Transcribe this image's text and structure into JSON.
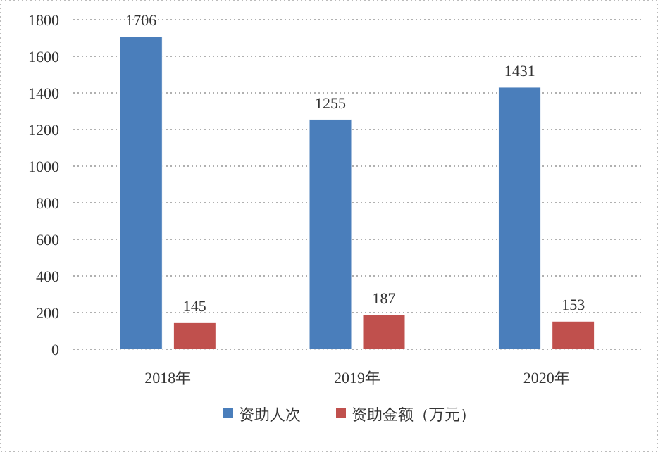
{
  "chart_data": {
    "type": "bar",
    "categories": [
      "2018年",
      "2019年",
      "2020年"
    ],
    "series": [
      {
        "name": "资助人次",
        "color": "#4a7ebb",
        "values": [
          1706,
          1255,
          1431
        ]
      },
      {
        "name": "资助金额（万元）",
        "color": "#c0504d",
        "values": [
          145,
          187,
          153
        ]
      }
    ],
    "ylim": [
      0,
      1800
    ],
    "yticks": [
      0,
      200,
      400,
      600,
      800,
      1000,
      1200,
      1400,
      1600,
      1800
    ],
    "grid": "y",
    "legend": "bottom",
    "data_labels": true
  }
}
